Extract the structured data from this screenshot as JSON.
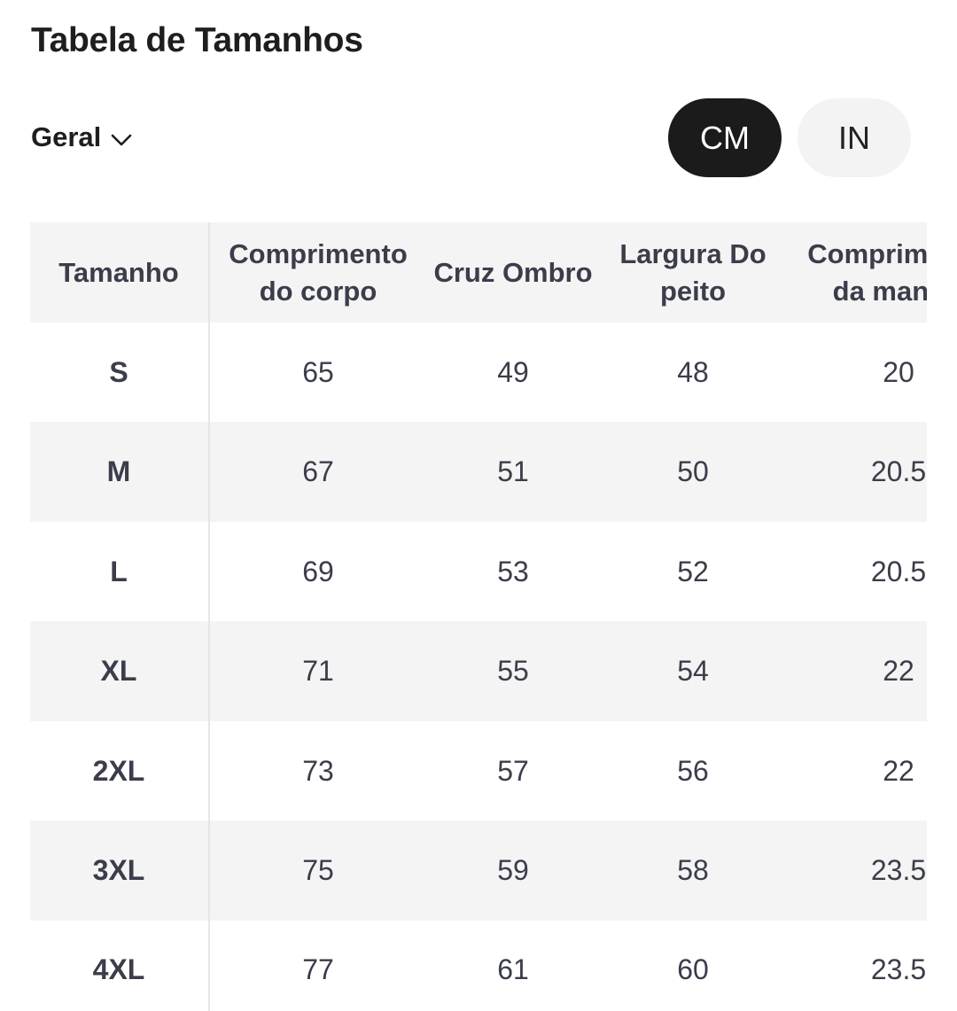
{
  "title": "Tabela de Tamanhos",
  "filter": {
    "label": "Geral",
    "icon": "chevron-down-icon"
  },
  "units": {
    "options": [
      "CM",
      "IN"
    ],
    "selected": "CM"
  },
  "table": {
    "headers": [
      "Tamanho",
      "Comprimento do corpo",
      "Cruz Ombro",
      "Largura Do peito",
      "Comprimento da manga"
    ],
    "rows": [
      {
        "size": "S",
        "values": [
          "65",
          "49",
          "48",
          "20"
        ]
      },
      {
        "size": "M",
        "values": [
          "67",
          "51",
          "50",
          "20.5"
        ]
      },
      {
        "size": "L",
        "values": [
          "69",
          "53",
          "52",
          "20.5"
        ]
      },
      {
        "size": "XL",
        "values": [
          "71",
          "55",
          "54",
          "22"
        ]
      },
      {
        "size": "2XL",
        "values": [
          "73",
          "57",
          "56",
          "22"
        ]
      },
      {
        "size": "3XL",
        "values": [
          "75",
          "59",
          "58",
          "23.5"
        ]
      },
      {
        "size": "4XL",
        "values": [
          "77",
          "61",
          "60",
          "23.5"
        ]
      }
    ]
  },
  "colors": {
    "active_button_bg": "#1b1b1b",
    "inactive_button_bg": "#f3f3f3",
    "row_shade": "#f4f4f4",
    "table_text": "#3b3d4a"
  }
}
